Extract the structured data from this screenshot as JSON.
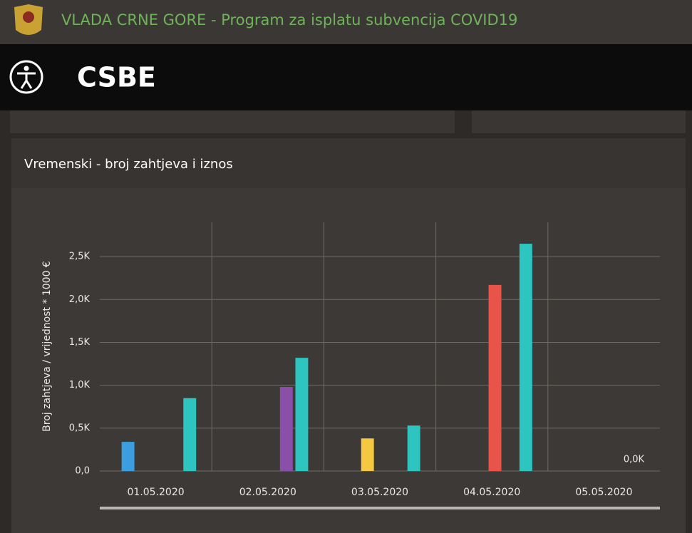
{
  "header": {
    "title": "VLADA CRNE GORE - Program za isplatu subvencija COVID19",
    "app_name": "CSBE"
  },
  "chart_data": {
    "type": "bar",
    "title": "Vremenski - broj zahtjeva i iznos",
    "y_label": "Broj zahtjeva / vrijednost * 1000 €",
    "categories": [
      "01.05.2020",
      "02.05.2020",
      "03.05.2020",
      "04.05.2020",
      "05.05.2020"
    ],
    "series": [
      {
        "color": "#3a9ee0",
        "values": [
          340,
          null,
          null,
          null,
          null
        ]
      },
      {
        "color": "#f5c842",
        "values": [
          null,
          null,
          380,
          null,
          null
        ]
      },
      {
        "color": "#e8534a",
        "values": [
          null,
          null,
          null,
          2170,
          null
        ]
      },
      {
        "color": "#8a4fa8",
        "values": [
          null,
          980,
          null,
          null,
          null
        ]
      },
      {
        "color": "#2ec4c0",
        "values": [
          850,
          1320,
          530,
          2650,
          0
        ],
        "value_labels": [
          null,
          null,
          null,
          null,
          "0,0K"
        ]
      }
    ],
    "ylim": [
      0,
      2900
    ],
    "yticks": [
      {
        "value": 0,
        "label": "0,0"
      },
      {
        "value": 500,
        "label": "0,5K"
      },
      {
        "value": 1000,
        "label": "1,0K"
      },
      {
        "value": 1500,
        "label": "1,5K"
      },
      {
        "value": 2000,
        "label": "2,0K"
      },
      {
        "value": 2500,
        "label": "2,5K"
      }
    ],
    "grid": true
  }
}
